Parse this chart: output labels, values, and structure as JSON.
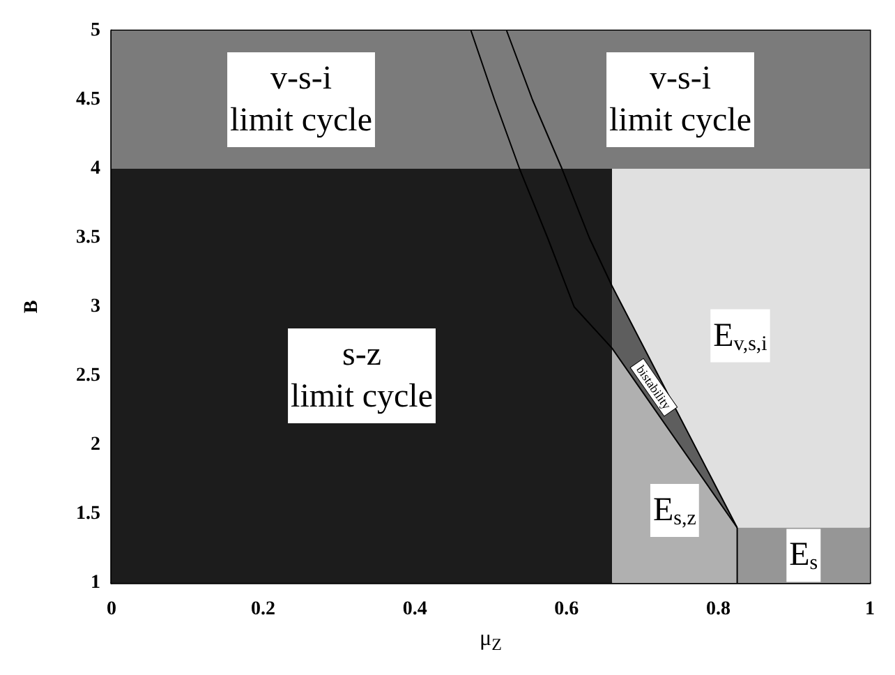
{
  "chart_data": {
    "type": "area",
    "xlabel": "μ$_{Z}$",
    "ylabel": "B",
    "xlim": [
      0,
      1
    ],
    "xticks": [
      0,
      0.2,
      0.4,
      0.6,
      0.8,
      1
    ],
    "ylim": [
      1,
      5
    ],
    "yticks": [
      1,
      1.5,
      2,
      2.5,
      3,
      3.5,
      4,
      4.5,
      5
    ],
    "grid": false,
    "series": [
      {
        "name": "v-s-i\nlimit cycle",
        "color": "#7b7b7b",
        "x": [
          0,
          0.5,
          0.5,
          0
        ],
        "values": [
          5,
          5,
          4,
          4
        ]
      },
      {
        "name": "v-s-i\nlimit cycle",
        "color": "#7b7b7b",
        "x": [
          0.5,
          1,
          1,
          0.5
        ],
        "values": [
          5,
          5,
          4,
          4
        ]
      },
      {
        "name": "s-z\nlimit cycle",
        "color": "#1c1c1c",
        "x": [
          0,
          0.66,
          0.66,
          0
        ],
        "values": [
          4,
          4,
          1,
          1
        ]
      },
      {
        "name": "E$_{s,z}$",
        "color": "#b0b0b0",
        "x": [
          0.66,
          0.825,
          0.825,
          0.66
        ],
        "values": [
          2.7,
          1.4,
          1,
          1
        ]
      },
      {
        "name": "bistability",
        "color": "#5e5e5e",
        "x": [
          0.66,
          0.825,
          0.66
        ],
        "values": [
          3.15,
          1.4,
          2.7
        ]
      },
      {
        "name": "E$_{v,s,i}$",
        "color": "#e0e0e0",
        "x": [
          0.66,
          0.825,
          1,
          1,
          0.66
        ],
        "values": [
          3.15,
          1.4,
          1.4,
          4,
          4
        ]
      },
      {
        "name": "E$_{s}$",
        "color": "#969696",
        "x": [
          0.825,
          1,
          1,
          0.825
        ],
        "values": [
          1.4,
          1.4,
          1,
          1
        ]
      },
      {
        "type": "line",
        "color": "#000000",
        "x": [
          0.474,
          0.505,
          0.538,
          0.575,
          0.61,
          0.66,
          0.825
        ],
        "values": [
          5,
          4.5,
          4,
          3.5,
          3,
          2.7,
          1.4
        ]
      },
      {
        "type": "line",
        "color": "#000000",
        "x": [
          0.521,
          0.555,
          0.594,
          0.63,
          0.66,
          0.825
        ],
        "values": [
          5,
          4.5,
          4,
          3.5,
          3.15,
          1.4
        ]
      },
      {
        "type": "line",
        "color": "#000000",
        "x": [
          0.825,
          0.825
        ],
        "values": [
          1,
          1.4
        ]
      }
    ]
  }
}
